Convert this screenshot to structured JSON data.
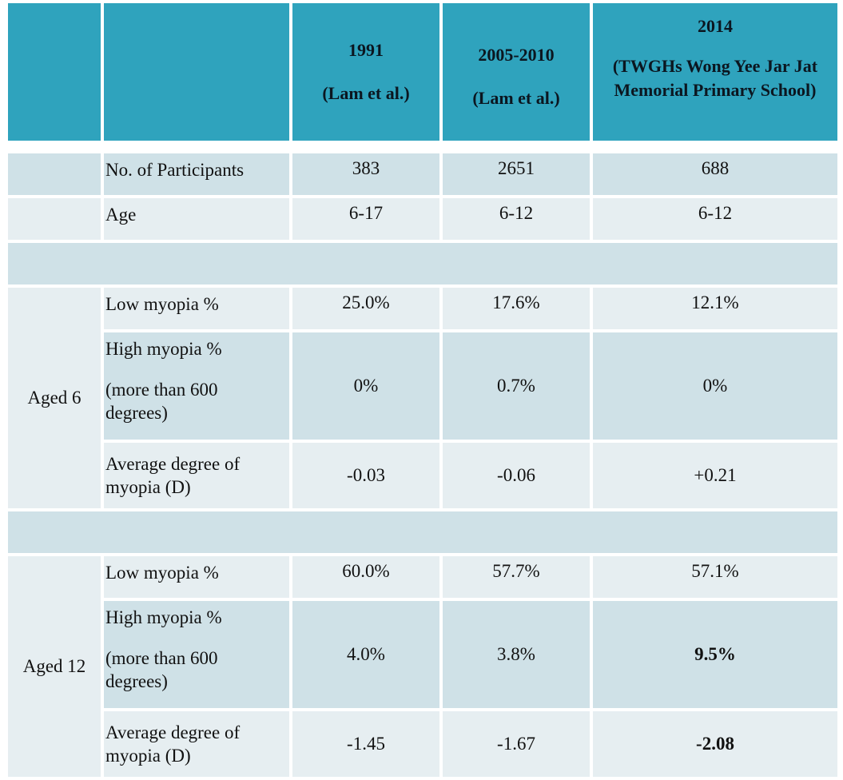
{
  "header": {
    "col1991": [
      "1991",
      "(Lam et al.)"
    ],
    "col2005": [
      "2005-2010",
      "(Lam et al.)"
    ],
    "col2014": [
      "2014",
      "(TWGHs Wong Yee Jar Jat",
      "Memorial Primary School)"
    ]
  },
  "general": [
    {
      "label": "No. of Participants",
      "v1991": "383",
      "v2005": "2651",
      "v2014": "688"
    },
    {
      "label": "Age",
      "v1991": "6-17",
      "v2005": "6-12",
      "v2014": "6-12"
    }
  ],
  "aged6": {
    "group_label": "Aged 6",
    "rows": [
      {
        "label": "Low myopia %",
        "v1991": "25.0%",
        "v2005": "17.6%",
        "v2014": "12.1%"
      },
      {
        "label": "High myopia %",
        "label2": "(more than 600",
        "label3": "degrees)",
        "v1991": "0%",
        "v2005": "0.7%",
        "v2014": "0%"
      },
      {
        "label": "Average degree of",
        "label2": "myopia (D)",
        "v1991": "-0.03",
        "v2005": "-0.06",
        "v2014": "+0.21"
      }
    ]
  },
  "aged12": {
    "group_label": "Aged 12",
    "rows": [
      {
        "label": "Low myopia %",
        "v1991": "60.0%",
        "v2005": "57.7%",
        "v2014": "57.1%"
      },
      {
        "label": "High myopia %",
        "label2": "(more than 600",
        "label3": "degrees)",
        "v1991": "4.0%",
        "v2005": "3.8%",
        "v2014": "9.5%"
      },
      {
        "label": "Average degree of",
        "label2": "myopia (D)",
        "v1991": "-1.45",
        "v2005": "-1.67",
        "v2014": "-2.08"
      }
    ]
  }
}
